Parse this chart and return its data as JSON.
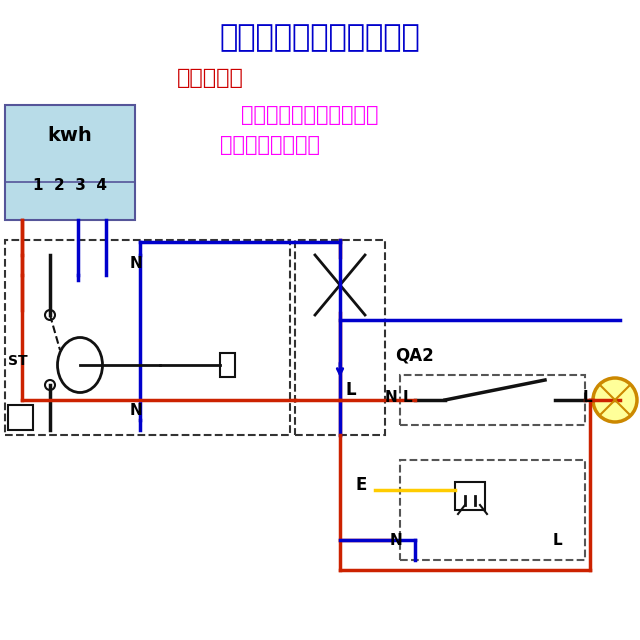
{
  "title": "照明电路一：一控一灯一",
  "subtitle": "控制要求：",
  "desc_line1": "一个开关控制一盏灯，插",
  "desc_line2": "座不受开关控制。",
  "label_kwh": "kwh",
  "label_1234": "1  2  3  4",
  "label_N1": "N",
  "label_N2": "N",
  "label_N3": "N",
  "label_N4": "N",
  "label_L1": "L",
  "label_L2": "L",
  "label_L3": "L",
  "label_E": "E",
  "label_QA2": "QA2",
  "bg_color": "#ffffff",
  "meter_bg": "#b8dce8",
  "title_color": "#0000cc",
  "subtitle_color": "#cc0000",
  "desc_color": "#ff00ff",
  "red_wire": "#cc2200",
  "blue_wire": "#0000cc",
  "dark_wire": "#111111",
  "yellow_wire": "#ffcc00"
}
